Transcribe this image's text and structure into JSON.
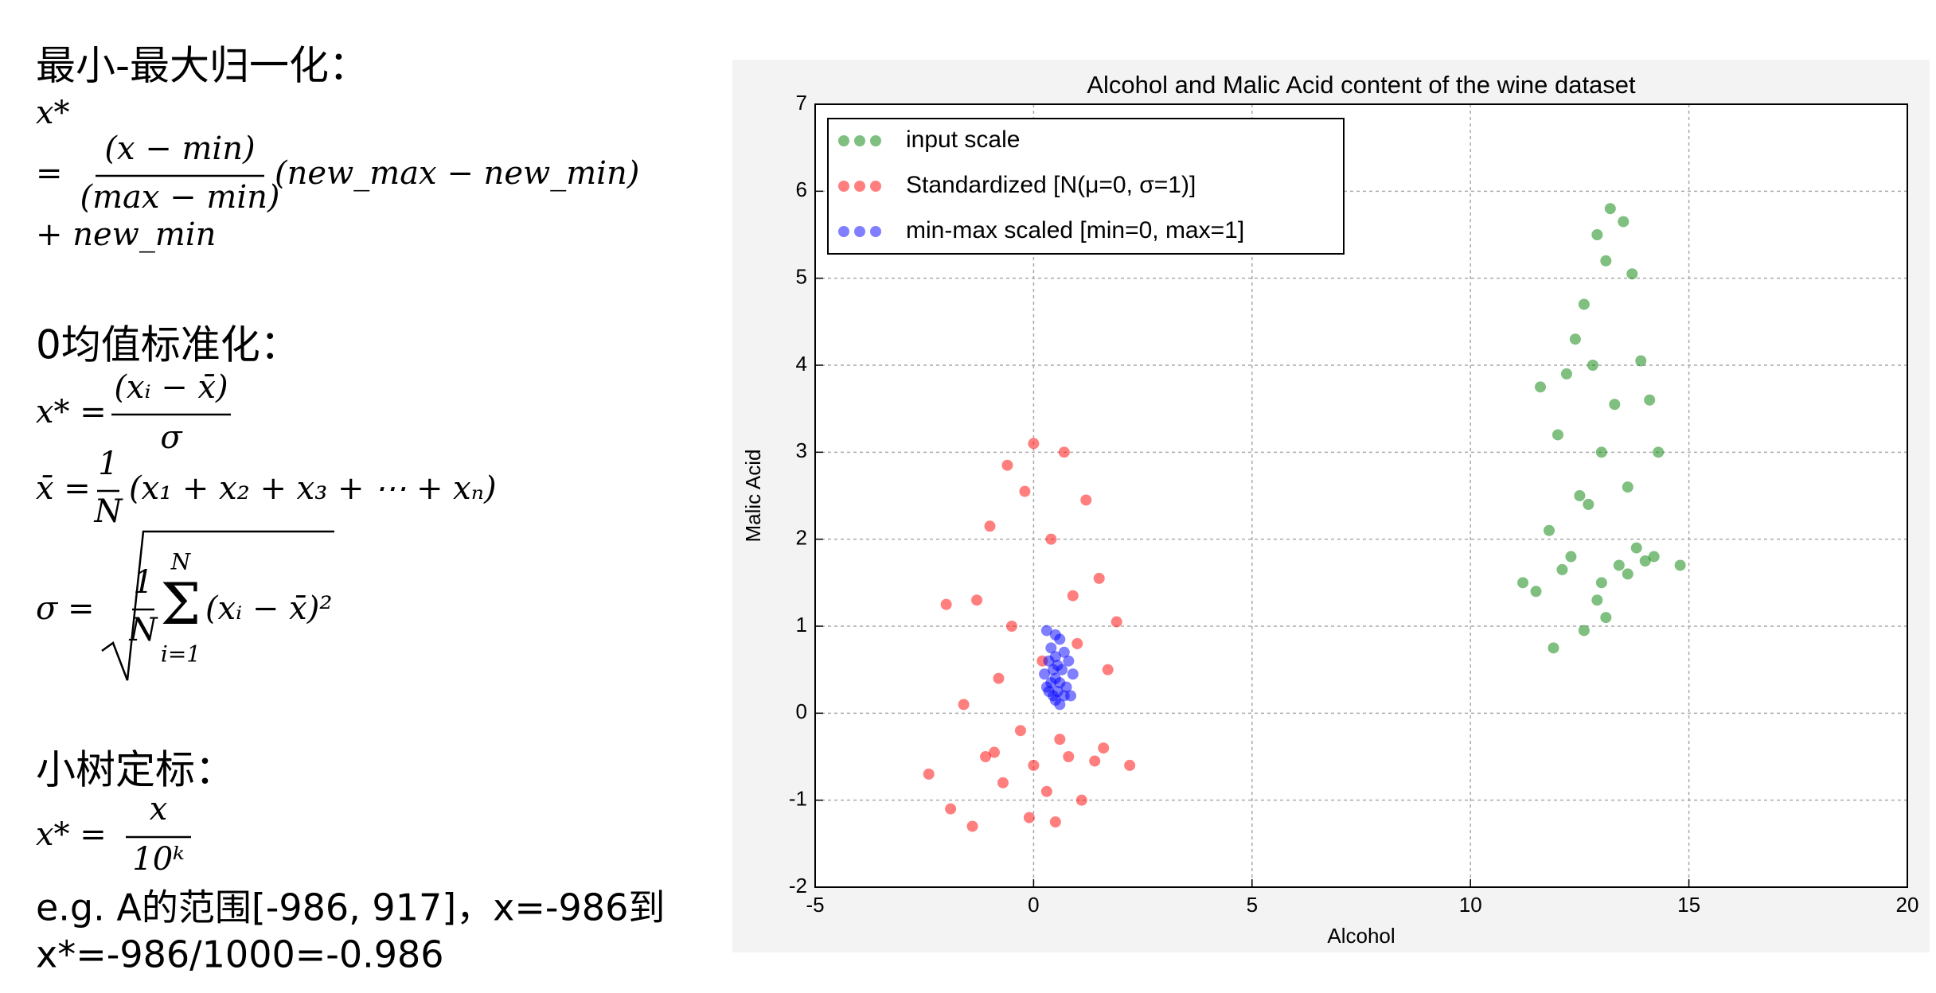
{
  "minmax": {
    "heading": "最小-最大归一化：",
    "lhs": "x*",
    "eq": "=",
    "numerator": "(x − min)",
    "denominator": "(max − min)",
    "factor": "(new_max − new_min)",
    "offset": "+ new_min"
  },
  "zscore": {
    "heading": "0均值标准化：",
    "lhs": "x* =",
    "numerator": "(xᵢ − x̄)",
    "denominator": "σ",
    "mean_lhs": "x̄ =",
    "mean_num": "1",
    "mean_den": "N",
    "mean_sum": "(x₁ + x₂ + x₃ + ⋯ + xₙ)",
    "sd_lhs": "σ =",
    "sd_num": "1",
    "sd_den": "N",
    "sd_sigma": "Σ",
    "sd_upper": "N",
    "sd_lower": "i=1",
    "sd_term": "(xᵢ − x̄)²"
  },
  "decimal": {
    "heading": "小树定标：",
    "lhs": "x* =",
    "numerator": "x",
    "denominator": "10ᵏ",
    "example1": "e.g. A的范围[-986, 917]，x=-986到",
    "example2": "x*=-986/1000=-0.986"
  },
  "chart_data": {
    "type": "scatter",
    "title": "Alcohol and Malic Acid content of the wine dataset",
    "xlabel": "Alcohol",
    "ylabel": "Malic Acid",
    "xlim": [
      -5,
      20
    ],
    "xticks": [
      -5,
      0,
      5,
      10,
      15,
      20
    ],
    "ylim": [
      -2,
      7
    ],
    "yticks": [
      -2,
      -1,
      0,
      1,
      2,
      3,
      4,
      5,
      6,
      7
    ],
    "grid": true,
    "legend": "upper left",
    "series": [
      {
        "name": "input scale",
        "color": "#008000",
        "x": [
          13.2,
          12.9,
          13.5,
          12.6,
          13.1,
          13.7,
          12.4,
          12.8,
          13.9,
          11.6,
          12.2,
          13.3,
          14.1,
          12.0,
          13.0,
          12.5,
          14.3,
          11.8,
          13.6,
          12.7,
          14.8,
          11.2,
          12.3,
          13.8,
          14.0,
          12.1,
          13.4,
          11.5,
          12.9,
          13.1,
          13.6,
          14.2,
          12.6,
          11.9,
          13.0
        ],
        "values": [
          5.8,
          5.5,
          5.65,
          4.7,
          5.2,
          5.05,
          4.3,
          4.0,
          4.05,
          3.75,
          3.9,
          3.55,
          3.6,
          3.2,
          3.0,
          2.5,
          3.0,
          2.1,
          2.6,
          2.4,
          1.7,
          1.5,
          1.8,
          1.9,
          1.75,
          1.65,
          1.7,
          1.4,
          1.3,
          1.1,
          1.6,
          1.8,
          0.95,
          0.75,
          1.5
        ]
      },
      {
        "name": "Standardized [N(μ=0,  σ=1)]",
        "color": "#ff0000",
        "x": [
          0.0,
          -0.6,
          0.7,
          -0.2,
          1.2,
          -1.0,
          0.4,
          1.5,
          -1.3,
          0.9,
          -0.5,
          1.9,
          -2.0,
          0.2,
          1.0,
          -0.8,
          1.7,
          -1.6,
          -0.3,
          0.6,
          2.2,
          -2.4,
          -1.1,
          0.8,
          1.4,
          -0.7,
          0.3,
          -1.9,
          1.1,
          -0.1,
          0.5,
          -1.4,
          0.0,
          1.6,
          -0.9
        ],
        "values": [
          3.1,
          2.85,
          3.0,
          2.55,
          2.45,
          2.15,
          2.0,
          1.55,
          1.3,
          1.35,
          1.0,
          1.05,
          1.25,
          0.6,
          0.8,
          0.4,
          0.5,
          0.1,
          -0.2,
          -0.3,
          -0.6,
          -0.7,
          -0.5,
          -0.5,
          -0.55,
          -0.8,
          -0.9,
          -1.1,
          -1.0,
          -1.2,
          -1.25,
          -1.3,
          -0.6,
          -0.4,
          -0.45
        ]
      },
      {
        "name": "min-max scaled [min=0, max=1]",
        "color": "#0000ff",
        "x": [
          0.3,
          0.5,
          0.6,
          0.4,
          0.7,
          0.5,
          0.35,
          0.8,
          0.55,
          0.45,
          0.65,
          0.25,
          0.9,
          0.5,
          0.6,
          0.4,
          0.75,
          0.3,
          0.55,
          0.7,
          0.45,
          0.85,
          0.5,
          0.6,
          0.35
        ],
        "values": [
          0.95,
          0.9,
          0.85,
          0.75,
          0.7,
          0.65,
          0.6,
          0.6,
          0.55,
          0.5,
          0.5,
          0.45,
          0.45,
          0.4,
          0.35,
          0.35,
          0.3,
          0.3,
          0.25,
          0.2,
          0.2,
          0.2,
          0.15,
          0.1,
          0.25
        ]
      }
    ]
  }
}
